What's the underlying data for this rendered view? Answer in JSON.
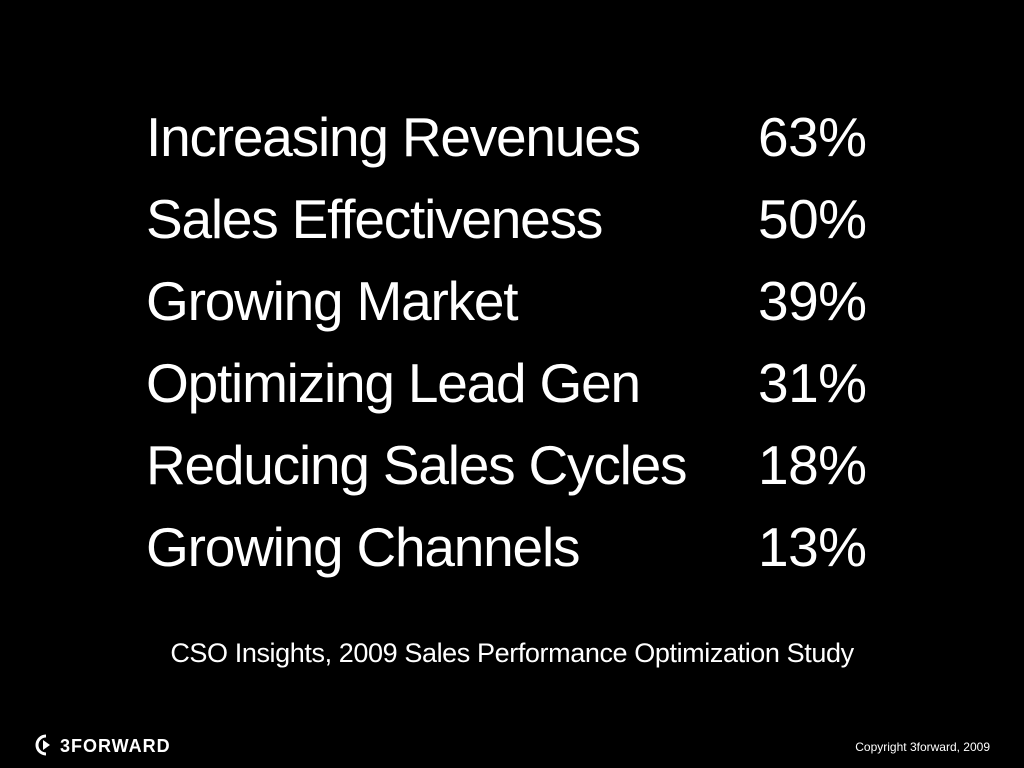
{
  "stats": [
    {
      "label": "Increasing Revenues",
      "value": "63%"
    },
    {
      "label": "Sales Effectiveness",
      "value": "50%"
    },
    {
      "label": "Growing Market",
      "value": "39%"
    },
    {
      "label": "Optimizing Lead Gen",
      "value": "31%"
    },
    {
      "label": "Reducing Sales Cycles",
      "value": "18%"
    },
    {
      "label": "Growing Channels",
      "value": "13%"
    }
  ],
  "source": "CSO Insights, 2009 Sales Performance Optimization Study",
  "footer": {
    "logo_text": "3FORWARD",
    "copyright": "Copyright 3forward, 2009"
  },
  "colors": {
    "background": "#000000",
    "text": "#ffffff"
  }
}
